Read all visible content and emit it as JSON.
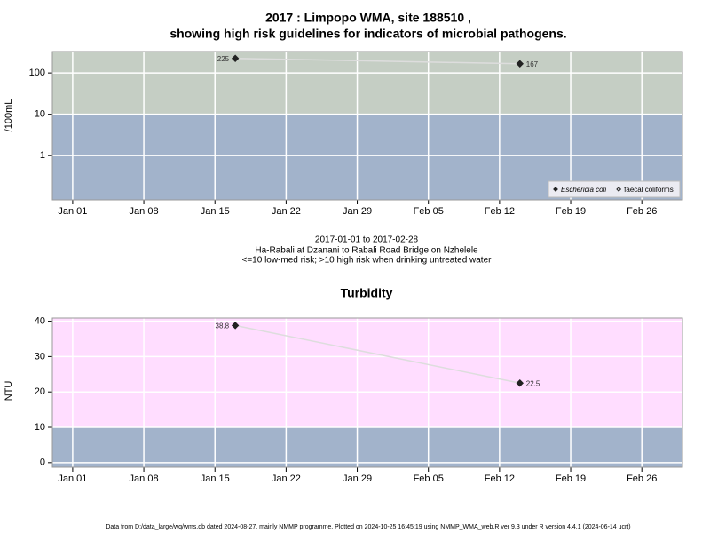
{
  "chart_data": [
    {
      "type": "line",
      "title": "2017 : Limpopo WMA, site 188510 ,",
      "subtitle": "showing high risk guidelines for indicators of microbial pathogens.",
      "y_label": "/100mL",
      "log_scale": true,
      "notes": [
        "2017-01-01 to 2017-02-28",
        "Ha-Rabali at Dzanani to Rabali Road Bridge on Nzhelele",
        "<=10 low-med risk; >10 high risk when drinking untreated water"
      ],
      "x": [
        "2017-01-17",
        "2017-02-14"
      ],
      "series": [
        {
          "name": "Eschericia coli",
          "color": "#222222",
          "marker": "filled",
          "values": [
            225,
            167
          ]
        },
        {
          "name": "faecal coliforms",
          "color": "#222222",
          "marker": "open",
          "values": [
            null,
            null
          ]
        }
      ],
      "line_color": "#dddddd",
      "threshold": 10,
      "above_color": "#c5cec4",
      "below_color": "#a2b3cb",
      "xlim": [
        "2016-12-30",
        "2017-03-02"
      ],
      "xticks": [
        {
          "value": "2017-01-01",
          "label": "Jan 01"
        },
        {
          "value": "2017-01-08",
          "label": "Jan 08"
        },
        {
          "value": "2017-01-15",
          "label": "Jan 15"
        },
        {
          "value": "2017-01-22",
          "label": "Jan 22"
        },
        {
          "value": "2017-01-29",
          "label": "Jan 29"
        },
        {
          "value": "2017-02-05",
          "label": "Feb 05"
        },
        {
          "value": "2017-02-12",
          "label": "Feb 12"
        },
        {
          "value": "2017-02-19",
          "label": "Feb 19"
        },
        {
          "value": "2017-02-26",
          "label": "Feb 26"
        }
      ],
      "ylim": [
        0.085,
        330
      ],
      "yticks": [
        1,
        10,
        100
      ],
      "grid": true,
      "legend": "bottom-right"
    },
    {
      "type": "line",
      "title": "Turbidity",
      "y_label": "NTU",
      "log_scale": false,
      "x": [
        "2017-01-17",
        "2017-02-14"
      ],
      "series": [
        {
          "color": "#222222",
          "marker": "filled",
          "values": [
            38.8,
            22.5
          ]
        }
      ],
      "line_color": "#dddddd",
      "threshold": 10,
      "above_color": "#ffddff",
      "below_color": "#a2b3cb",
      "xlim": [
        "2016-12-30",
        "2017-03-02"
      ],
      "xticks": [
        {
          "value": "2017-01-01",
          "label": "Jan 01"
        },
        {
          "value": "2017-01-08",
          "label": "Jan 08"
        },
        {
          "value": "2017-01-15",
          "label": "Jan 15"
        },
        {
          "value": "2017-01-22",
          "label": "Jan 22"
        },
        {
          "value": "2017-01-29",
          "label": "Jan 29"
        },
        {
          "value": "2017-02-05",
          "label": "Feb 05"
        },
        {
          "value": "2017-02-12",
          "label": "Feb 12"
        },
        {
          "value": "2017-02-19",
          "label": "Feb 19"
        },
        {
          "value": "2017-02-26",
          "label": "Feb 26"
        }
      ],
      "ylim": [
        -1.3,
        40.9
      ],
      "yticks": [
        0,
        10,
        20,
        30,
        40
      ],
      "grid": true
    }
  ],
  "footer": "Data from D:/data_large/wq/wms.db dated 2024-08-27, mainly NMMP programme. Plotted on 2024-10-25 16:45:19 using NMMP_WMA_web.R ver 9.3 under R version 4.4.1 (2024-06-14 ucrt)"
}
